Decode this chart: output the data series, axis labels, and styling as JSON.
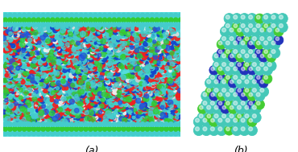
{
  "fig_width": 3.7,
  "fig_height": 1.89,
  "dpi": 100,
  "background": "#ffffff",
  "label_a": "(a)",
  "label_b": "(b)",
  "panel_a": {
    "nanotube_bg": "#55dddd",
    "wall_green": "#33cc33",
    "wall_blue": "#2255dd",
    "wall_teal": "#44cccc",
    "seed": 42,
    "n_water": 2500
  },
  "panel_b": {
    "teal_color": "#44c8b8",
    "green_color": "#44cc33",
    "blue_color": "#2233bb",
    "bond_color": "#339933",
    "bg_color": "#ffffff"
  }
}
